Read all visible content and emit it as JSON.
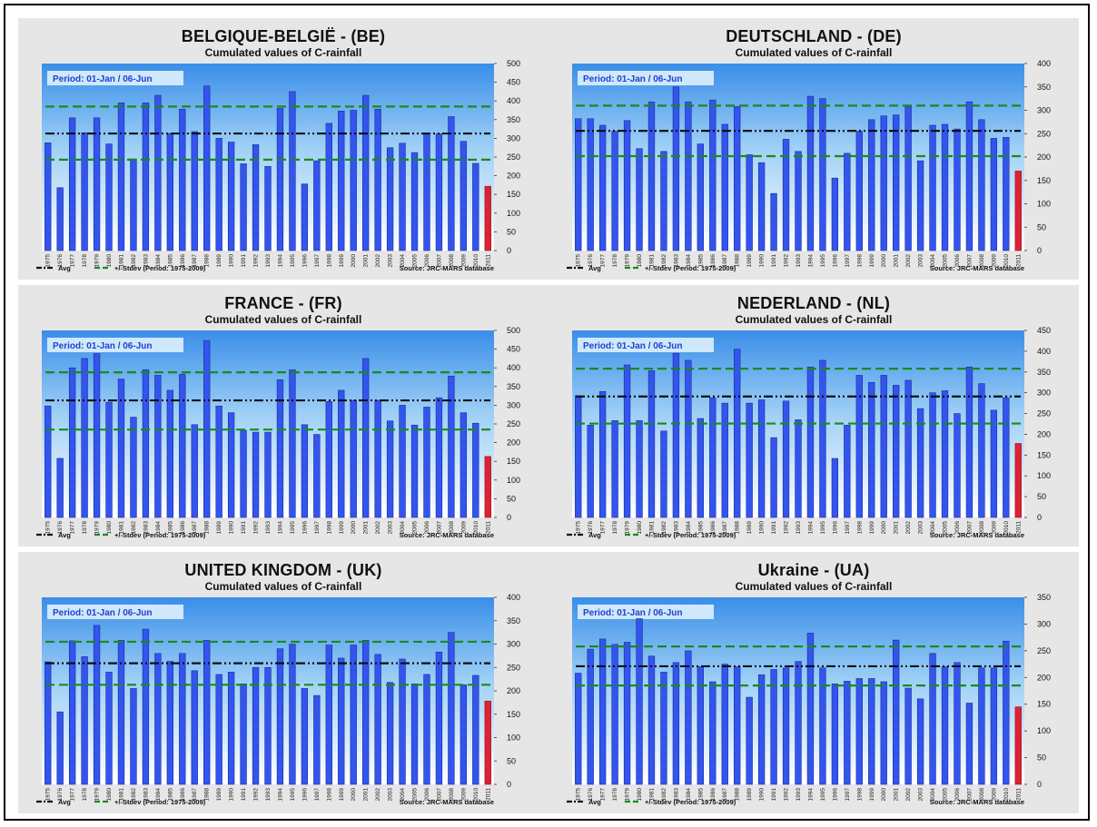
{
  "common": {
    "subtitle": "Cumulated values of C-rainfall",
    "period": "Period: 01-Jan / 06-Jun",
    "legend_avg": "Avg",
    "legend_stdev": "+/-Stdev (Period: 1975-2009)",
    "source": "Source: JRC-MARS database",
    "colors": {
      "bar": "#3355ee",
      "last_bar": "#dd2233",
      "avg_line": "#111111",
      "stdev_line": "#1a8a1a"
    }
  },
  "chart_data": [
    {
      "type": "bar",
      "title": "BELGIQUE-BELGIË - (BE)",
      "categories": [
        "1975",
        "1976",
        "1977",
        "1978",
        "1979",
        "1980",
        "1981",
        "1982",
        "1983",
        "1984",
        "1985",
        "1986",
        "1987",
        "1988",
        "1989",
        "1990",
        "1991",
        "1992",
        "1993",
        "1994",
        "1995",
        "1996",
        "1997",
        "1998",
        "1999",
        "2000",
        "2001",
        "2002",
        "2003",
        "2004",
        "2005",
        "2006",
        "2007",
        "2008",
        "2009",
        "2010",
        "2011"
      ],
      "values": [
        288,
        168,
        355,
        315,
        355,
        285,
        395,
        245,
        395,
        415,
        313,
        378,
        318,
        440,
        300,
        290,
        232,
        283,
        225,
        380,
        425,
        178,
        240,
        340,
        373,
        375,
        415,
        378,
        275,
        287,
        262,
        313,
        312,
        358,
        292,
        233,
        172
      ],
      "ylim": [
        0,
        500
      ],
      "yticks": [
        0,
        50,
        100,
        150,
        200,
        250,
        300,
        350,
        400,
        450,
        500
      ],
      "avg": 313,
      "stdev_low": 243,
      "stdev_high": 385
    },
    {
      "type": "bar",
      "title": "DEUTSCHLAND - (DE)",
      "categories": [
        "1975",
        "1976",
        "1977",
        "1978",
        "1979",
        "1980",
        "1981",
        "1982",
        "1983",
        "1984",
        "1985",
        "1986",
        "1987",
        "1988",
        "1989",
        "1990",
        "1991",
        "1992",
        "1993",
        "1994",
        "1995",
        "1996",
        "1997",
        "1998",
        "1999",
        "2000",
        "2001",
        "2002",
        "2003",
        "2004",
        "2005",
        "2006",
        "2007",
        "2008",
        "2009",
        "2010",
        "2011"
      ],
      "values": [
        282,
        282,
        268,
        255,
        278,
        218,
        318,
        212,
        350,
        318,
        228,
        322,
        270,
        308,
        205,
        188,
        122,
        238,
        212,
        330,
        325,
        155,
        208,
        255,
        280,
        288,
        290,
        308,
        192,
        268,
        270,
        260,
        318,
        280,
        240,
        242,
        170
      ],
      "ylim": [
        0,
        400
      ],
      "yticks": [
        0,
        50,
        100,
        150,
        200,
        250,
        300,
        350,
        400
      ],
      "avg": 256,
      "stdev_low": 202,
      "stdev_high": 310
    },
    {
      "type": "bar",
      "title": "FRANCE - (FR)",
      "categories": [
        "1975",
        "1976",
        "1977",
        "1978",
        "1979",
        "1980",
        "1981",
        "1982",
        "1983",
        "1984",
        "1985",
        "1986",
        "1987",
        "1988",
        "1989",
        "1990",
        "1991",
        "1992",
        "1993",
        "1994",
        "1995",
        "1996",
        "1997",
        "1998",
        "1999",
        "2000",
        "2001",
        "2002",
        "2003",
        "2004",
        "2005",
        "2006",
        "2007",
        "2008",
        "2009",
        "2010",
        "2011"
      ],
      "values": [
        298,
        158,
        400,
        425,
        438,
        308,
        370,
        268,
        395,
        380,
        340,
        383,
        248,
        473,
        298,
        280,
        233,
        228,
        228,
        368,
        395,
        248,
        222,
        310,
        340,
        313,
        425,
        313,
        258,
        300,
        247,
        295,
        320,
        378,
        280,
        252,
        163
      ],
      "ylim": [
        0,
        500
      ],
      "yticks": [
        0,
        50,
        100,
        150,
        200,
        250,
        300,
        350,
        400,
        450,
        500
      ],
      "avg": 313,
      "stdev_low": 235,
      "stdev_high": 388
    },
    {
      "type": "bar",
      "title": "NEDERLAND - (NL)",
      "categories": [
        "1975",
        "1976",
        "1977",
        "1978",
        "1979",
        "1980",
        "1981",
        "1982",
        "1983",
        "1984",
        "1985",
        "1986",
        "1987",
        "1988",
        "1989",
        "1990",
        "1991",
        "1992",
        "1993",
        "1994",
        "1995",
        "1996",
        "1997",
        "1998",
        "1999",
        "2000",
        "2001",
        "2002",
        "2003",
        "2004",
        "2005",
        "2006",
        "2007",
        "2008",
        "2009",
        "2010",
        "2011"
      ],
      "values": [
        293,
        222,
        303,
        233,
        367,
        233,
        353,
        208,
        395,
        378,
        238,
        288,
        275,
        405,
        275,
        283,
        192,
        280,
        235,
        362,
        378,
        142,
        222,
        342,
        325,
        342,
        318,
        330,
        262,
        300,
        305,
        250,
        362,
        322,
        258,
        288,
        178
      ],
      "ylim": [
        0,
        450
      ],
      "yticks": [
        0,
        50,
        100,
        150,
        200,
        250,
        300,
        350,
        400,
        450
      ],
      "avg": 291,
      "stdev_low": 226,
      "stdev_high": 358
    },
    {
      "type": "bar",
      "title": "UNITED KINGDOM - (UK)",
      "categories": [
        "1975",
        "1976",
        "1977",
        "1978",
        "1979",
        "1980",
        "1981",
        "1982",
        "1983",
        "1984",
        "1985",
        "1986",
        "1987",
        "1988",
        "1989",
        "1990",
        "1991",
        "1992",
        "1993",
        "1994",
        "1995",
        "1996",
        "1997",
        "1998",
        "1999",
        "2000",
        "2001",
        "2002",
        "2003",
        "2004",
        "2005",
        "2006",
        "2007",
        "2008",
        "2009",
        "2010",
        "2011"
      ],
      "values": [
        262,
        155,
        307,
        273,
        340,
        240,
        308,
        205,
        332,
        280,
        263,
        280,
        243,
        308,
        235,
        240,
        215,
        250,
        250,
        290,
        300,
        205,
        190,
        298,
        270,
        298,
        308,
        278,
        218,
        268,
        215,
        235,
        283,
        325,
        213,
        233,
        178
      ],
      "ylim": [
        0,
        400
      ],
      "yticks": [
        0,
        50,
        100,
        150,
        200,
        250,
        300,
        350,
        400
      ],
      "avg": 259,
      "stdev_low": 213,
      "stdev_high": 305
    },
    {
      "type": "bar",
      "title": "Ukraine - (UA)",
      "categories": [
        "1975",
        "1976",
        "1977",
        "1978",
        "1979",
        "1980",
        "1981",
        "1982",
        "1983",
        "1984",
        "1985",
        "1986",
        "1987",
        "1988",
        "1989",
        "1990",
        "1991",
        "1992",
        "1993",
        "1994",
        "1995",
        "1996",
        "1997",
        "1998",
        "1999",
        "2000",
        "2001",
        "2002",
        "2003",
        "2004",
        "2005",
        "2006",
        "2007",
        "2008",
        "2009",
        "2010",
        "2011"
      ],
      "values": [
        208,
        253,
        272,
        262,
        266,
        310,
        240,
        210,
        228,
        250,
        220,
        192,
        225,
        220,
        163,
        205,
        215,
        218,
        230,
        283,
        218,
        188,
        193,
        198,
        198,
        192,
        270,
        180,
        160,
        245,
        220,
        228,
        152,
        218,
        218,
        268,
        145
      ],
      "ylim": [
        0,
        350
      ],
      "yticks": [
        0,
        50,
        100,
        150,
        200,
        250,
        300,
        350
      ],
      "avg": 221,
      "stdev_low": 185,
      "stdev_high": 258
    }
  ]
}
